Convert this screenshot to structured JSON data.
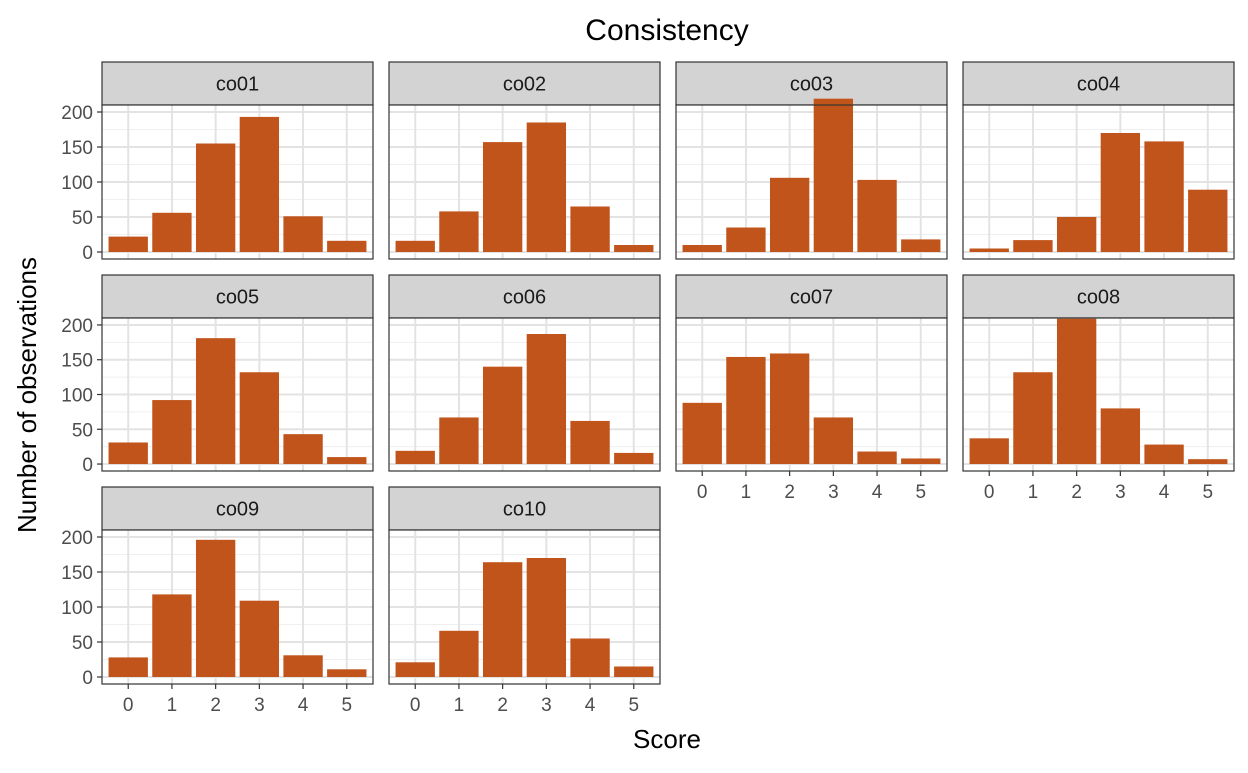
{
  "chart_data": {
    "type": "bar",
    "title": "Consistency",
    "xlabel": "Score",
    "ylabel": "Number of observations",
    "categories": [
      "0",
      "1",
      "2",
      "3",
      "4",
      "5"
    ],
    "ylim": [
      -10,
      210
    ],
    "yticks": [
      0,
      50,
      100,
      150,
      200
    ],
    "grid": true,
    "bar_color": "#C1541A",
    "strip_color": "#D3D3D3",
    "panels": [
      {
        "name": "co01",
        "values": [
          22,
          56,
          155,
          193,
          51,
          16
        ]
      },
      {
        "name": "co02",
        "values": [
          16,
          58,
          157,
          185,
          65,
          10
        ]
      },
      {
        "name": "co03",
        "values": [
          10,
          35,
          106,
          219,
          103,
          18
        ]
      },
      {
        "name": "co04",
        "values": [
          5,
          17,
          50,
          170,
          158,
          89
        ]
      },
      {
        "name": "co05",
        "values": [
          31,
          92,
          181,
          132,
          43,
          10
        ]
      },
      {
        "name": "co06",
        "values": [
          19,
          67,
          140,
          187,
          62,
          16
        ]
      },
      {
        "name": "co07",
        "values": [
          88,
          154,
          159,
          67,
          18,
          8
        ]
      },
      {
        "name": "co08",
        "values": [
          37,
          132,
          209,
          80,
          28,
          7
        ]
      },
      {
        "name": "co09",
        "values": [
          28,
          118,
          196,
          109,
          31,
          11
        ]
      },
      {
        "name": "co10",
        "values": [
          21,
          66,
          164,
          170,
          55,
          15
        ]
      }
    ]
  }
}
